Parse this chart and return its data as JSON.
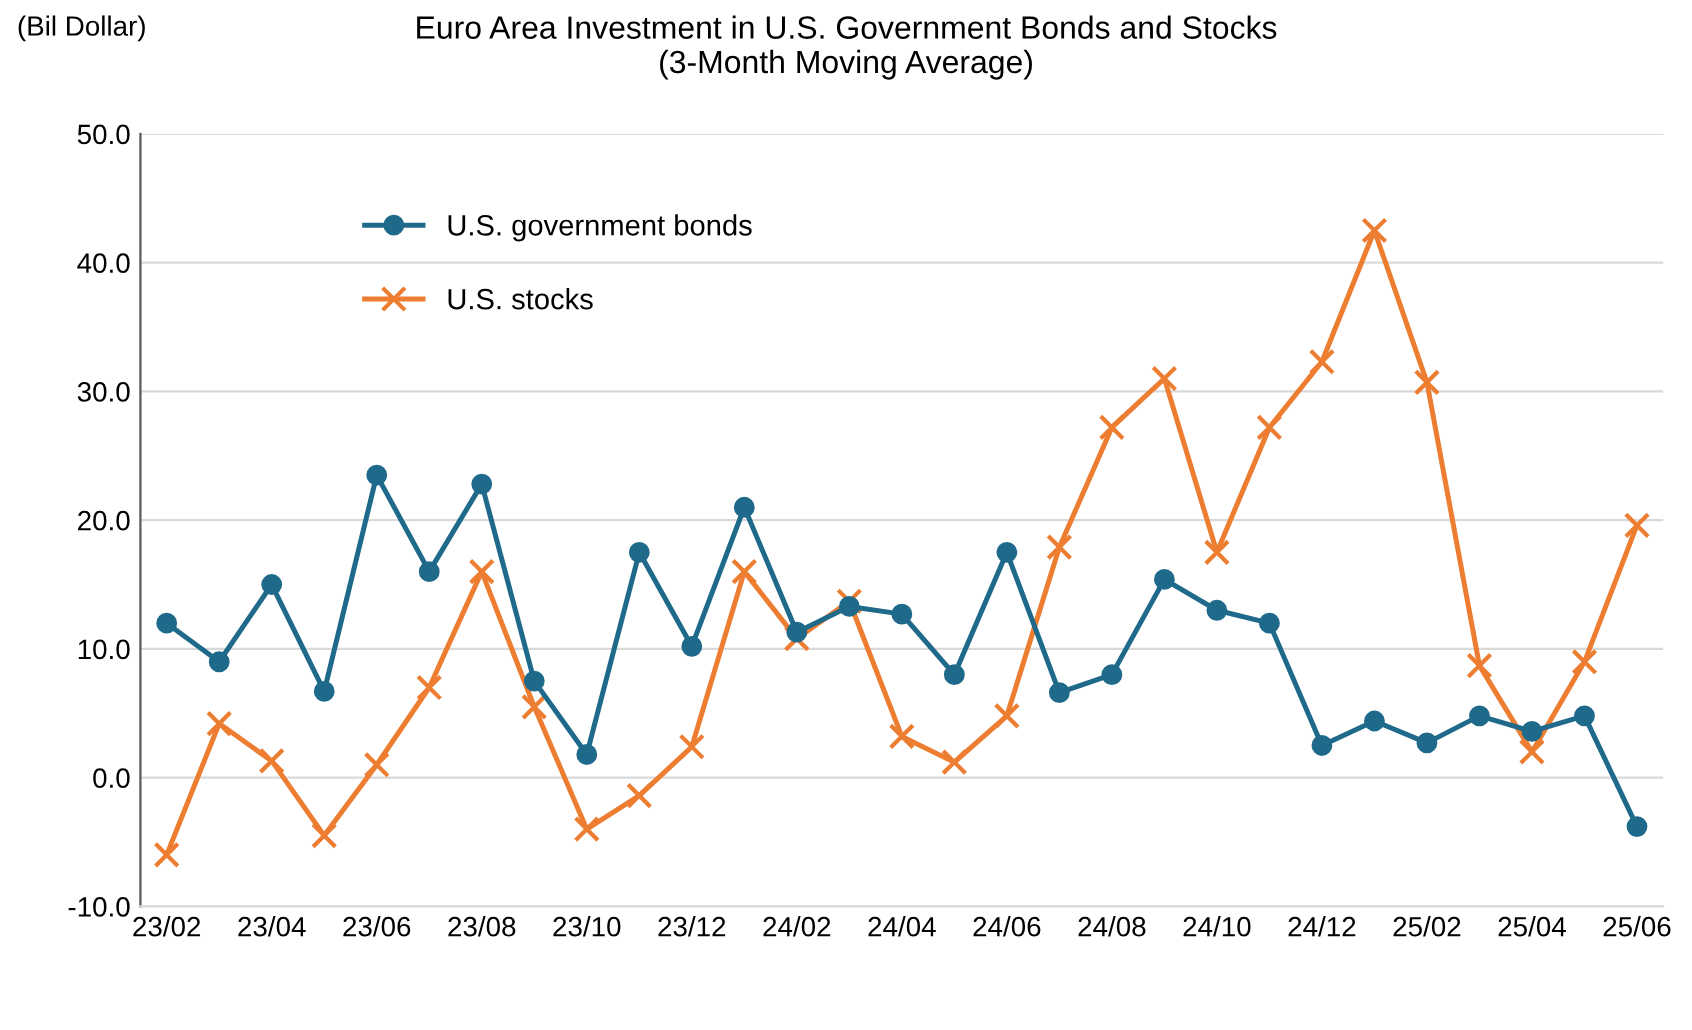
{
  "chart_data": {
    "type": "line",
    "title": "Euro Area Investment in U.S. Government Bonds and Stocks\n(3-Month Moving Average)",
    "ylabel": "(Bil Dollar)",
    "categories": [
      "23/02",
      null,
      "23/04",
      null,
      "23/06",
      null,
      "23/08",
      null,
      "23/10",
      null,
      "23/12",
      null,
      "24/02",
      null,
      "24/04",
      null,
      "24/06",
      null,
      "24/08",
      null,
      "24/10",
      null,
      "24/12",
      null,
      "25/02",
      null,
      "25/04",
      null,
      "25/06"
    ],
    "series": [
      {
        "name": "U.S. government bonds",
        "color": "#1f6a8a",
        "marker": "circle",
        "values": [
          12,
          9,
          15,
          6.7,
          23.5,
          16,
          22.8,
          7.5,
          1.8,
          17.5,
          10.2,
          21,
          11.3,
          13.3,
          12.7,
          8,
          17.5,
          6.6,
          8,
          15.4,
          13,
          12,
          2.5,
          4.4,
          2.7,
          4.8,
          3.6,
          4.8,
          -3.8
        ]
      },
      {
        "name": "U.S. stocks",
        "color": "#ed7d31",
        "marker": "cross",
        "values": [
          -6,
          4.2,
          1.3,
          -4.5,
          1,
          7,
          16,
          5.5,
          -4,
          -1.4,
          2.4,
          16,
          10.8,
          13.7,
          3.2,
          1.2,
          4.8,
          17.9,
          27.2,
          31,
          17.5,
          27.2,
          32.3,
          42.5,
          30.7,
          8.7,
          2,
          9,
          19.6
        ]
      }
    ],
    "ylim": [
      -10,
      50
    ],
    "yticks": [
      {
        "value": -10,
        "label": "-10.0"
      },
      {
        "value": 0,
        "label": "0.0"
      },
      {
        "value": 10,
        "label": "10.0"
      },
      {
        "value": 20,
        "label": "20.0"
      },
      {
        "value": 30,
        "label": "30.0"
      },
      {
        "value": 40,
        "label": "40.0"
      },
      {
        "value": 50,
        "label": "50.0"
      }
    ],
    "grid": "y",
    "legend": "top left"
  }
}
